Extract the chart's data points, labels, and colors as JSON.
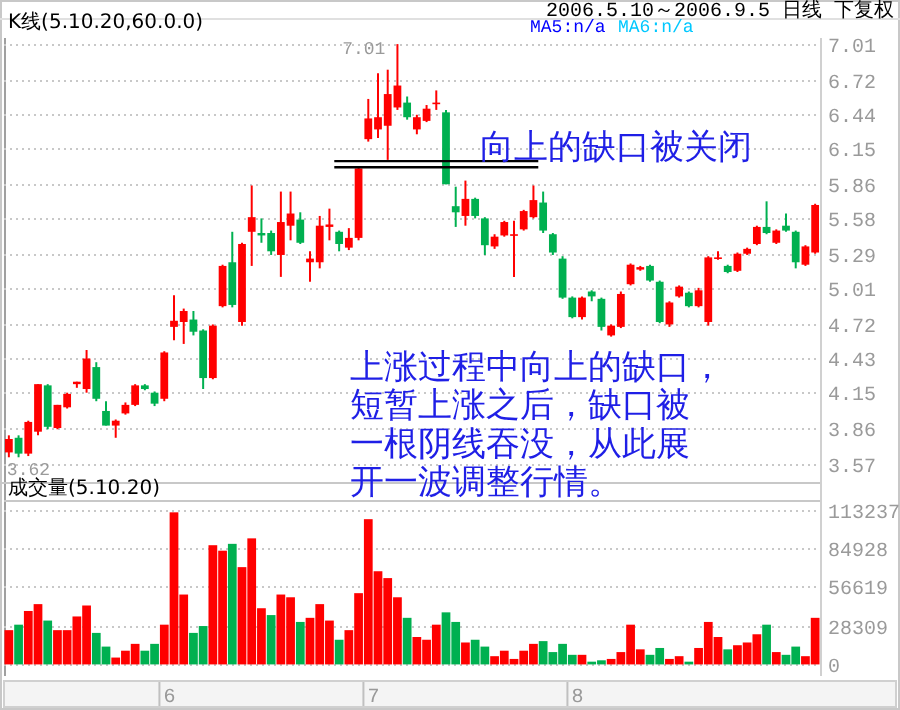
{
  "chart_data": [
    {
      "type": "candlestick",
      "title": "K线(5.10.20,60.0.0)",
      "categories": [
        null,
        null,
        null,
        null,
        null,
        null,
        null,
        null,
        null,
        null,
        null,
        null,
        null,
        null,
        null,
        null,
        null,
        null,
        null,
        null,
        null,
        null,
        null,
        null,
        null,
        null,
        null,
        null,
        null,
        null,
        null,
        null,
        null,
        null,
        null,
        null,
        null,
        null,
        null,
        null,
        null,
        null,
        null,
        null,
        null,
        null,
        null,
        null,
        null,
        null,
        null,
        null,
        null,
        null,
        null,
        null,
        null,
        null,
        null,
        null,
        null,
        null,
        null,
        null,
        null,
        null,
        null,
        null,
        null,
        null,
        null,
        null,
        null,
        null,
        null,
        null,
        null,
        null,
        null,
        null,
        null,
        null,
        null,
        null
      ],
      "colors": [
        "#ff0000",
        "#00b050",
        "#ff0000",
        "#ff0000",
        "#00b050",
        "#ff0000",
        "#ff0000",
        "#ff0000",
        "#ff0000",
        "#00b050",
        "#00b050",
        "#ff0000",
        "#ff0000",
        "#ff0000",
        "#00b050",
        "#00b050",
        "#ff0000",
        "#ff0000",
        "#ff0000",
        "#00b050",
        "#00b050",
        "#ff0000",
        "#ff0000",
        "#00b050",
        "#ff0000",
        "#ff0000",
        "#00b050",
        "#00b050",
        "#ff0000",
        "#ff0000",
        "#00b050",
        "#ff0000",
        "#ff0000",
        "#ff0000",
        "#00b050",
        "#ff0000",
        "#ff0000",
        "#ff0000",
        "#ff0000",
        "#ff0000",
        "#ff0000",
        "#00b050",
        "#ff0000",
        "#ff0000",
        "#ff0000",
        "#00b050",
        "#00b050",
        "#ff0000",
        "#00b050",
        "#00b050",
        "#ff0000",
        "#ff0000",
        "#ff0000",
        "#ff0000",
        "#ff0000",
        "#00b050",
        "#00b050",
        "#00b050",
        "#00b050",
        "#ff0000",
        "#00b050",
        "#00b050",
        "#ff0000",
        "#ff0000",
        "#ff0000",
        "#ff0000",
        "#00b050",
        "#00b050",
        "#ff0000",
        "#ff0000",
        "#00b050",
        "#ff0000",
        "#ff0000",
        "#ff0000",
        "#00b050",
        "#ff0000",
        "#ff0000",
        "#ff0000",
        "#00b050",
        "#ff0000",
        "#00b050",
        "#00b050",
        "#ff0000",
        "#ff0000"
      ],
      "ohlc": [
        [
          3.66,
          3.8,
          3.62,
          3.77
        ],
        [
          3.78,
          3.8,
          3.62,
          3.65
        ],
        [
          3.65,
          3.92,
          3.63,
          3.91
        ],
        [
          3.83,
          4.22,
          3.8,
          4.22
        ],
        [
          4.21,
          4.22,
          3.85,
          3.87
        ],
        [
          3.86,
          4.05,
          3.85,
          4.05
        ],
        [
          4.03,
          4.15,
          4.02,
          4.14
        ],
        [
          4.22,
          4.24,
          4.19,
          4.24
        ],
        [
          4.18,
          4.5,
          4.15,
          4.43
        ],
        [
          4.36,
          4.4,
          4.08,
          4.1
        ],
        [
          4.0,
          4.08,
          3.88,
          3.88
        ],
        [
          3.88,
          3.93,
          3.78,
          3.92
        ],
        [
          3.98,
          4.07,
          3.97,
          4.05
        ],
        [
          4.05,
          4.22,
          4.04,
          4.21
        ],
        [
          4.21,
          4.22,
          4.17,
          4.18
        ],
        [
          4.15,
          4.16,
          4.04,
          4.06
        ],
        [
          4.1,
          4.49,
          4.08,
          4.48
        ],
        [
          4.69,
          4.95,
          4.58,
          4.74
        ],
        [
          4.73,
          4.84,
          4.55,
          4.82
        ],
        [
          4.75,
          4.82,
          4.62,
          4.65
        ],
        [
          4.66,
          4.67,
          4.18,
          4.27
        ],
        [
          4.27,
          4.71,
          4.26,
          4.7
        ],
        [
          4.86,
          5.2,
          4.85,
          5.19
        ],
        [
          5.22,
          5.47,
          4.85,
          4.87
        ],
        [
          4.73,
          5.38,
          4.7,
          5.37
        ],
        [
          5.47,
          5.85,
          5.19,
          5.59
        ],
        [
          5.46,
          5.58,
          5.38,
          5.44
        ],
        [
          5.46,
          5.48,
          5.28,
          5.31
        ],
        [
          5.28,
          5.8,
          5.1,
          5.55
        ],
        [
          5.52,
          5.8,
          5.4,
          5.62
        ],
        [
          5.57,
          5.63,
          5.37,
          5.38
        ],
        [
          5.22,
          5.31,
          5.06,
          5.25
        ],
        [
          5.22,
          5.6,
          5.17,
          5.52
        ],
        [
          5.51,
          5.66,
          5.4,
          5.53
        ],
        [
          5.47,
          5.48,
          5.31,
          5.37
        ],
        [
          5.34,
          5.5,
          5.32,
          5.42
        ],
        [
          5.42,
          6.0,
          5.4,
          5.99
        ],
        [
          6.23,
          6.56,
          6.21,
          6.4
        ],
        [
          6.31,
          6.77,
          6.24,
          6.41
        ],
        [
          6.34,
          6.8,
          6.06,
          6.6
        ],
        [
          6.49,
          7.01,
          6.47,
          6.67
        ],
        [
          6.53,
          6.58,
          6.39,
          6.41
        ],
        [
          6.31,
          6.43,
          6.27,
          6.41
        ],
        [
          6.38,
          6.51,
          6.37,
          6.48
        ],
        [
          6.52,
          6.63,
          6.47,
          6.53
        ],
        [
          6.45,
          6.47,
          5.86,
          5.86
        ],
        [
          5.68,
          5.84,
          5.51,
          5.63
        ],
        [
          5.6,
          5.89,
          5.52,
          5.74
        ],
        [
          5.74,
          5.75,
          5.58,
          5.6
        ],
        [
          5.58,
          5.59,
          5.28,
          5.36
        ],
        [
          5.35,
          5.45,
          5.33,
          5.43
        ],
        [
          5.44,
          5.56,
          5.43,
          5.55
        ],
        [
          5.44,
          5.56,
          5.1,
          5.45
        ],
        [
          5.49,
          5.65,
          5.48,
          5.64
        ],
        [
          5.59,
          5.85,
          5.58,
          5.73
        ],
        [
          5.71,
          5.8,
          5.46,
          5.48
        ],
        [
          5.45,
          5.46,
          5.28,
          5.3
        ],
        [
          5.25,
          5.27,
          4.92,
          4.93
        ],
        [
          4.93,
          4.94,
          4.76,
          4.77
        ],
        [
          4.77,
          4.94,
          4.75,
          4.93
        ],
        [
          4.98,
          4.99,
          4.9,
          4.94
        ],
        [
          4.92,
          4.93,
          4.66,
          4.69
        ],
        [
          4.62,
          4.71,
          4.61,
          4.7
        ],
        [
          4.69,
          4.98,
          4.68,
          4.96
        ],
        [
          5.04,
          5.21,
          5.03,
          5.2
        ],
        [
          5.16,
          5.19,
          5.15,
          5.18
        ],
        [
          5.19,
          5.2,
          5.06,
          5.07
        ],
        [
          5.06,
          5.07,
          4.72,
          4.73
        ],
        [
          4.71,
          4.9,
          4.69,
          4.89
        ],
        [
          4.94,
          5.03,
          4.93,
          5.02
        ],
        [
          4.97,
          4.98,
          4.85,
          4.86
        ],
        [
          4.86,
          5.01,
          4.85,
          4.99
        ],
        [
          4.73,
          5.27,
          4.7,
          5.26
        ],
        [
          5.25,
          5.31,
          5.24,
          5.26
        ],
        [
          5.19,
          5.2,
          5.13,
          5.14
        ],
        [
          5.15,
          5.3,
          5.14,
          5.29
        ],
        [
          5.29,
          5.34,
          5.28,
          5.33
        ],
        [
          5.37,
          5.52,
          5.36,
          5.51
        ],
        [
          5.51,
          5.72,
          5.45,
          5.46
        ],
        [
          5.38,
          5.49,
          5.37,
          5.48
        ],
        [
          5.52,
          5.62,
          5.47,
          5.48
        ],
        [
          5.47,
          5.48,
          5.17,
          5.22
        ],
        [
          5.2,
          5.36,
          5.19,
          5.35
        ],
        [
          5.3,
          5.7,
          5.29,
          5.69
        ]
      ],
      "ylim": [
        3.45,
        7.06
      ],
      "yticks": [
        3.57,
        3.86,
        4.15,
        4.43,
        4.72,
        5.01,
        5.29,
        5.58,
        5.86,
        6.15,
        6.44,
        6.72,
        7.01
      ],
      "grid": "y",
      "ref_lines": [
        {
          "axis": "y",
          "value": 6.05,
          "color": "#000000"
        },
        {
          "axis": "y",
          "value": 6.0,
          "color": "#000000"
        }
      ],
      "annotations": [
        "2006.5.10～2006.9.5 日线 下复权",
        "MA5:n/a",
        "MA6:n/a",
        "7.01",
        "3.62",
        "向上的缺口被关闭",
        "上涨过程中向上的缺口，",
        "短暂上涨之后，缺口被",
        "一根阴线吞没，从此展",
        "开一波调整行情。"
      ]
    },
    {
      "type": "bar",
      "title": "成交量(5.10.20)",
      "categories": [
        null,
        null,
        null,
        null,
        null,
        null,
        null,
        null,
        null,
        null,
        null,
        null,
        null,
        null,
        null,
        null,
        "6",
        null,
        null,
        null,
        null,
        null,
        null,
        null,
        null,
        null,
        null,
        null,
        null,
        null,
        null,
        null,
        null,
        null,
        null,
        null,
        null,
        "7",
        null,
        null,
        null,
        null,
        null,
        null,
        null,
        null,
        null,
        null,
        null,
        null,
        null,
        null,
        null,
        null,
        null,
        null,
        null,
        null,
        "8",
        null,
        null,
        null,
        null,
        null,
        null,
        null,
        null,
        null,
        null,
        null,
        null,
        null,
        null,
        null,
        null,
        null,
        null,
        null,
        null,
        null,
        null,
        null,
        null,
        null
      ],
      "values": [
        25000,
        29000,
        39000,
        44000,
        32000,
        25000,
        25000,
        35000,
        43000,
        23000,
        13000,
        5000,
        10000,
        15000,
        10000,
        15000,
        29000,
        111000,
        51000,
        23000,
        28000,
        87000,
        83000,
        88000,
        71000,
        92000,
        41000,
        36000,
        51000,
        49000,
        31000,
        34000,
        44000,
        32000,
        18000,
        25000,
        52000,
        106000,
        68000,
        63000,
        49000,
        34000,
        20000,
        18000,
        29000,
        38000,
        31000,
        16000,
        18000,
        13000,
        6000,
        10000,
        4000,
        10000,
        15000,
        17000,
        9000,
        15000,
        7000,
        7000,
        2000,
        3000,
        4000,
        9000,
        29000,
        11000,
        7000,
        12000,
        4000,
        6000,
        2000,
        12000,
        31000,
        20000,
        11000,
        14000,
        16000,
        22000,
        29000,
        9000,
        7000,
        13000,
        6000,
        34000
      ],
      "colors": [
        "#ff0000",
        "#00b050",
        "#ff0000",
        "#ff0000",
        "#00b050",
        "#ff0000",
        "#ff0000",
        "#ff0000",
        "#ff0000",
        "#00b050",
        "#00b050",
        "#ff0000",
        "#ff0000",
        "#ff0000",
        "#00b050",
        "#00b050",
        "#ff0000",
        "#ff0000",
        "#ff0000",
        "#00b050",
        "#00b050",
        "#ff0000",
        "#ff0000",
        "#00b050",
        "#ff0000",
        "#ff0000",
        "#ff0000",
        "#00b050",
        "#ff0000",
        "#ff0000",
        "#00b050",
        "#ff0000",
        "#ff0000",
        "#ff0000",
        "#00b050",
        "#ff0000",
        "#ff0000",
        "#ff0000",
        "#ff0000",
        "#ff0000",
        "#ff0000",
        "#00b050",
        "#ff0000",
        "#ff0000",
        "#ff0000",
        "#00b050",
        "#00b050",
        "#ff0000",
        "#00b050",
        "#00b050",
        "#ff0000",
        "#ff0000",
        "#ff0000",
        "#ff0000",
        "#ff0000",
        "#00b050",
        "#00b050",
        "#00b050",
        "#00b050",
        "#ff0000",
        "#00b050",
        "#00b050",
        "#ff0000",
        "#ff0000",
        "#ff0000",
        "#ff0000",
        "#00b050",
        "#00b050",
        "#ff0000",
        "#ff0000",
        "#00b050",
        "#ff0000",
        "#ff0000",
        "#ff0000",
        "#00b050",
        "#ff0000",
        "#ff0000",
        "#ff0000",
        "#00b050",
        "#ff0000",
        "#00b050",
        "#00b050",
        "#ff0000",
        "#ff0000"
      ],
      "ylim": [
        -7000,
        120000
      ],
      "yticks": [
        0,
        28309,
        56619,
        84928,
        113237
      ],
      "grid": "y"
    }
  ]
}
